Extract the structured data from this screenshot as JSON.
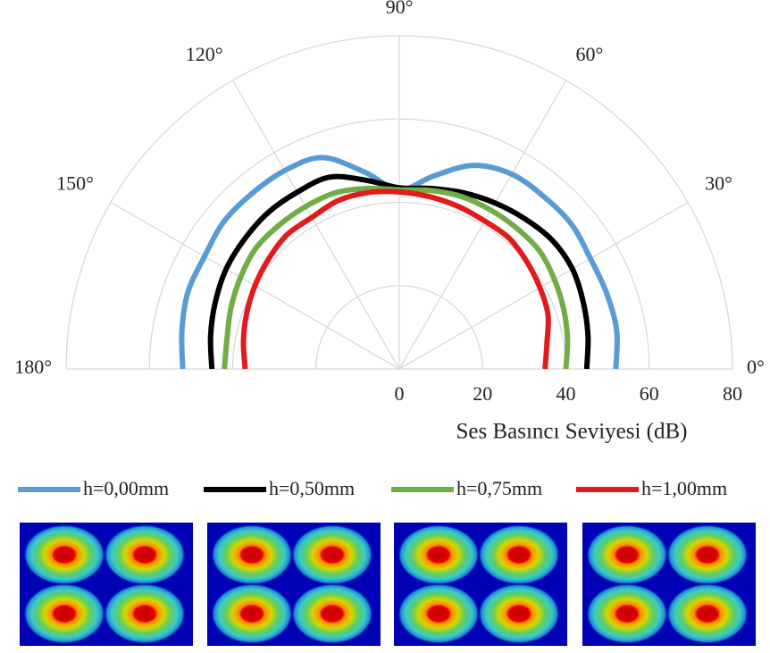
{
  "chart_data": {
    "type": "polar",
    "r_axis_label": "Ses Basıncı Seviyesi (dB)",
    "theta": [
      0,
      10,
      20,
      30,
      40,
      50,
      60,
      70,
      80,
      90,
      100,
      110,
      120,
      130,
      140,
      150,
      160,
      170,
      180
    ],
    "rlim": [
      0,
      80
    ],
    "rticks": [
      0,
      20,
      40,
      60,
      80
    ],
    "thetaticks": [
      {
        "value": 0,
        "label": "0°"
      },
      {
        "value": 30,
        "label": "30°"
      },
      {
        "value": 60,
        "label": "60°"
      },
      {
        "value": 90,
        "label": "90°"
      },
      {
        "value": 120,
        "label": "120°"
      },
      {
        "value": 150,
        "label": "150°"
      },
      {
        "value": 180,
        "label": "180°"
      }
    ],
    "grid": true,
    "legend": "bottom",
    "series": [
      {
        "name": "h=0,00mm",
        "color": "#5b9bd5",
        "values": [
          52,
          53,
          53,
          53,
          54,
          54,
          54,
          52,
          47,
          43,
          48,
          54,
          55,
          55,
          55,
          54,
          54,
          53,
          52
        ]
      },
      {
        "name": "h=0,50mm",
        "color": "#000000",
        "values": [
          45,
          46,
          47,
          48,
          48,
          47,
          46,
          45,
          44,
          43.5,
          46,
          49,
          49,
          49,
          48.5,
          48,
          47,
          46,
          45
        ]
      },
      {
        "name": "h=0,75mm",
        "color": "#70ad47",
        "values": [
          40,
          41,
          42,
          43,
          44,
          44,
          44,
          44,
          43.5,
          43,
          44,
          45,
          45,
          45,
          45,
          44,
          43,
          42,
          42
        ]
      },
      {
        "name": "h=1,00mm",
        "color": "#e31a1c",
        "values": [
          35,
          36,
          38,
          39,
          40,
          41,
          41,
          41.5,
          42,
          42.5,
          43,
          43,
          42,
          42,
          41,
          40,
          39,
          38,
          37
        ]
      }
    ]
  }
}
